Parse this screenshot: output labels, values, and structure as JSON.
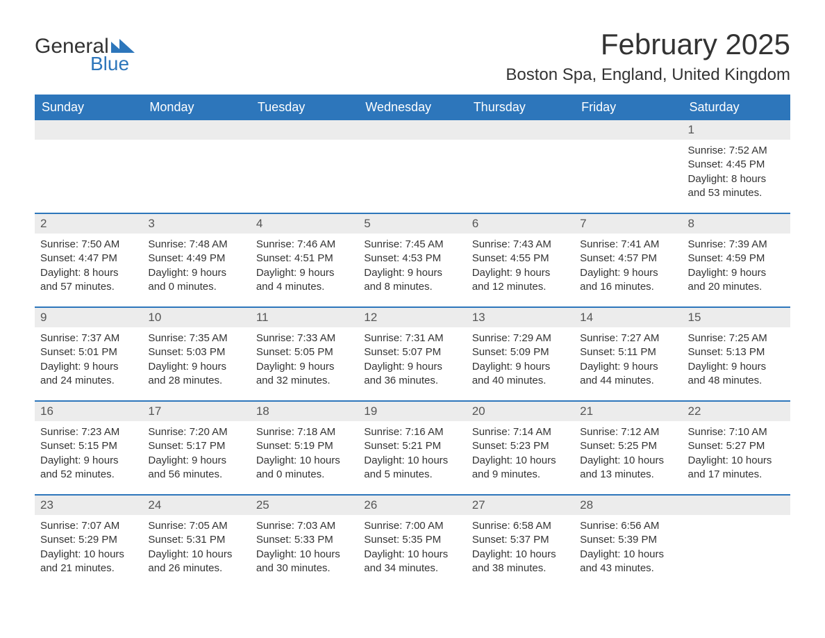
{
  "logo": {
    "part1": "General",
    "part2": "Blue",
    "shape_color": "#2d76bb",
    "text_color": "#333333"
  },
  "title": "February 2025",
  "location": "Boston Spa, England, United Kingdom",
  "colors": {
    "header_bg": "#2d76bb",
    "header_text": "#ffffff",
    "daynum_bg": "#ececec",
    "body_text": "#333333",
    "page_bg": "#ffffff"
  },
  "weekday_labels": [
    "Sunday",
    "Monday",
    "Tuesday",
    "Wednesday",
    "Thursday",
    "Friday",
    "Saturday"
  ],
  "weeks": [
    [
      {
        "day": "",
        "lines": []
      },
      {
        "day": "",
        "lines": []
      },
      {
        "day": "",
        "lines": []
      },
      {
        "day": "",
        "lines": []
      },
      {
        "day": "",
        "lines": []
      },
      {
        "day": "",
        "lines": []
      },
      {
        "day": "1",
        "lines": [
          "Sunrise: 7:52 AM",
          "Sunset: 4:45 PM",
          "Daylight: 8 hours and 53 minutes."
        ]
      }
    ],
    [
      {
        "day": "2",
        "lines": [
          "Sunrise: 7:50 AM",
          "Sunset: 4:47 PM",
          "Daylight: 8 hours and 57 minutes."
        ]
      },
      {
        "day": "3",
        "lines": [
          "Sunrise: 7:48 AM",
          "Sunset: 4:49 PM",
          "Daylight: 9 hours and 0 minutes."
        ]
      },
      {
        "day": "4",
        "lines": [
          "Sunrise: 7:46 AM",
          "Sunset: 4:51 PM",
          "Daylight: 9 hours and 4 minutes."
        ]
      },
      {
        "day": "5",
        "lines": [
          "Sunrise: 7:45 AM",
          "Sunset: 4:53 PM",
          "Daylight: 9 hours and 8 minutes."
        ]
      },
      {
        "day": "6",
        "lines": [
          "Sunrise: 7:43 AM",
          "Sunset: 4:55 PM",
          "Daylight: 9 hours and 12 minutes."
        ]
      },
      {
        "day": "7",
        "lines": [
          "Sunrise: 7:41 AM",
          "Sunset: 4:57 PM",
          "Daylight: 9 hours and 16 minutes."
        ]
      },
      {
        "day": "8",
        "lines": [
          "Sunrise: 7:39 AM",
          "Sunset: 4:59 PM",
          "Daylight: 9 hours and 20 minutes."
        ]
      }
    ],
    [
      {
        "day": "9",
        "lines": [
          "Sunrise: 7:37 AM",
          "Sunset: 5:01 PM",
          "Daylight: 9 hours and 24 minutes."
        ]
      },
      {
        "day": "10",
        "lines": [
          "Sunrise: 7:35 AM",
          "Sunset: 5:03 PM",
          "Daylight: 9 hours and 28 minutes."
        ]
      },
      {
        "day": "11",
        "lines": [
          "Sunrise: 7:33 AM",
          "Sunset: 5:05 PM",
          "Daylight: 9 hours and 32 minutes."
        ]
      },
      {
        "day": "12",
        "lines": [
          "Sunrise: 7:31 AM",
          "Sunset: 5:07 PM",
          "Daylight: 9 hours and 36 minutes."
        ]
      },
      {
        "day": "13",
        "lines": [
          "Sunrise: 7:29 AM",
          "Sunset: 5:09 PM",
          "Daylight: 9 hours and 40 minutes."
        ]
      },
      {
        "day": "14",
        "lines": [
          "Sunrise: 7:27 AM",
          "Sunset: 5:11 PM",
          "Daylight: 9 hours and 44 minutes."
        ]
      },
      {
        "day": "15",
        "lines": [
          "Sunrise: 7:25 AM",
          "Sunset: 5:13 PM",
          "Daylight: 9 hours and 48 minutes."
        ]
      }
    ],
    [
      {
        "day": "16",
        "lines": [
          "Sunrise: 7:23 AM",
          "Sunset: 5:15 PM",
          "Daylight: 9 hours and 52 minutes."
        ]
      },
      {
        "day": "17",
        "lines": [
          "Sunrise: 7:20 AM",
          "Sunset: 5:17 PM",
          "Daylight: 9 hours and 56 minutes."
        ]
      },
      {
        "day": "18",
        "lines": [
          "Sunrise: 7:18 AM",
          "Sunset: 5:19 PM",
          "Daylight: 10 hours and 0 minutes."
        ]
      },
      {
        "day": "19",
        "lines": [
          "Sunrise: 7:16 AM",
          "Sunset: 5:21 PM",
          "Daylight: 10 hours and 5 minutes."
        ]
      },
      {
        "day": "20",
        "lines": [
          "Sunrise: 7:14 AM",
          "Sunset: 5:23 PM",
          "Daylight: 10 hours and 9 minutes."
        ]
      },
      {
        "day": "21",
        "lines": [
          "Sunrise: 7:12 AM",
          "Sunset: 5:25 PM",
          "Daylight: 10 hours and 13 minutes."
        ]
      },
      {
        "day": "22",
        "lines": [
          "Sunrise: 7:10 AM",
          "Sunset: 5:27 PM",
          "Daylight: 10 hours and 17 minutes."
        ]
      }
    ],
    [
      {
        "day": "23",
        "lines": [
          "Sunrise: 7:07 AM",
          "Sunset: 5:29 PM",
          "Daylight: 10 hours and 21 minutes."
        ]
      },
      {
        "day": "24",
        "lines": [
          "Sunrise: 7:05 AM",
          "Sunset: 5:31 PM",
          "Daylight: 10 hours and 26 minutes."
        ]
      },
      {
        "day": "25",
        "lines": [
          "Sunrise: 7:03 AM",
          "Sunset: 5:33 PM",
          "Daylight: 10 hours and 30 minutes."
        ]
      },
      {
        "day": "26",
        "lines": [
          "Sunrise: 7:00 AM",
          "Sunset: 5:35 PM",
          "Daylight: 10 hours and 34 minutes."
        ]
      },
      {
        "day": "27",
        "lines": [
          "Sunrise: 6:58 AM",
          "Sunset: 5:37 PM",
          "Daylight: 10 hours and 38 minutes."
        ]
      },
      {
        "day": "28",
        "lines": [
          "Sunrise: 6:56 AM",
          "Sunset: 5:39 PM",
          "Daylight: 10 hours and 43 minutes."
        ]
      },
      {
        "day": "",
        "lines": []
      }
    ]
  ]
}
